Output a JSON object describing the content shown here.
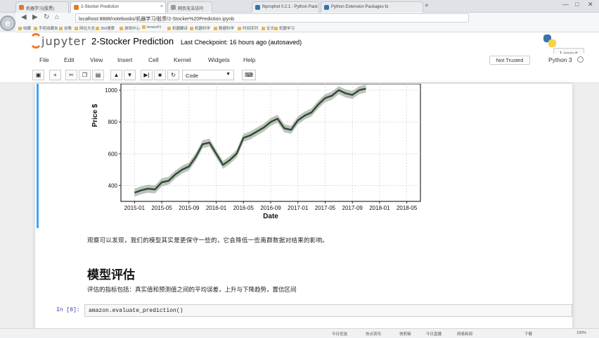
{
  "browser": {
    "tabs": [
      {
        "label": "机器学习(股票)"
      },
      {
        "label": "2-Stocker Prediction"
      },
      {
        "label": "网页无法访问"
      },
      {
        "label": "fbprophet 0.2.1 : Python Pack"
      },
      {
        "label": "Python Extension Packages fo"
      }
    ],
    "new_tab": "+",
    "window_controls": [
      "—",
      "□",
      "✕"
    ],
    "logo_letter": "e",
    "address": "localhost:8888/notebooks/机器学习/股票/2-Stocker%20Prediction.ipynb",
    "bookmarks": [
      "收藏",
      "手机收藏夹",
      "谷歌",
      "网址大全",
      "360搜索",
      "游戏中心",
      "tensorFl",
      "机器翻译",
      "机器科学",
      "数据科学",
      "时间序列",
      "论文",
      "机器学习"
    ]
  },
  "header": {
    "logo_text": "jupyter",
    "notebook_title": "2-Stocker Prediction",
    "checkpoint": "Last Checkpoint: 16 hours ago (autosaved)",
    "logout": "Logout"
  },
  "menu": {
    "items": [
      "File",
      "Edit",
      "View",
      "Insert",
      "Cell",
      "Kernel",
      "Widgets",
      "Help"
    ],
    "trust": "Not Trusted",
    "kernel": "Python 3"
  },
  "toolbar": {
    "buttons": [
      "save",
      "add",
      "cut",
      "copy",
      "paste",
      "move-up",
      "move-down",
      "run",
      "stop",
      "restart"
    ],
    "cell_type": "Code"
  },
  "chart_data": {
    "type": "line",
    "xlabel": "Date",
    "ylabel": "Price $",
    "x_tick_labels": [
      "2015-01",
      "2015-05",
      "2015-09",
      "2016-01",
      "2016-05",
      "2016-09",
      "2017-01",
      "2017-05",
      "2017-09",
      "2018-01",
      "2018-05"
    ],
    "y_tick_labels": [
      "400",
      "600",
      "800",
      "1000"
    ],
    "xlim": [
      "2014-11",
      "2018-07"
    ],
    "ylim": [
      300,
      1040
    ],
    "series": [
      {
        "color": "#2f4a2f",
        "band_color": "#9aa39a",
        "x": [
          "2015-01",
          "2015-02",
          "2015-03",
          "2015-04",
          "2015-05",
          "2015-06",
          "2015-07",
          "2015-08",
          "2015-09",
          "2015-10",
          "2015-11",
          "2015-12",
          "2016-01",
          "2016-02",
          "2016-03",
          "2016-04",
          "2016-05",
          "2016-06",
          "2016-07",
          "2016-08",
          "2016-09",
          "2016-10",
          "2016-11",
          "2016-12",
          "2017-01",
          "2017-02",
          "2017-03",
          "2017-04",
          "2017-05",
          "2017-06",
          "2017-07",
          "2017-08",
          "2017-09",
          "2017-10",
          "2017-11"
        ],
        "values": [
          355,
          370,
          380,
          375,
          420,
          430,
          470,
          500,
          520,
          580,
          660,
          670,
          600,
          530,
          560,
          600,
          700,
          715,
          740,
          765,
          800,
          820,
          760,
          750,
          810,
          840,
          860,
          910,
          950,
          965,
          1000,
          980,
          970,
          1000,
          1010
        ]
      }
    ]
  },
  "text": {
    "p1": "观察可以发现，我们的模型其实是更保守一些的，它会降低一些离群数据对结果的影响。",
    "h2": "模型评估",
    "p2": "评估的指标包括：真实值和预测值之间的平均误差，上升与下降趋势，置信区间",
    "in_prompt": "In [8]:",
    "code": "amazon.evaluate_prediction()"
  },
  "statusbar": {
    "items": [
      "今日优选",
      "热点资讯",
      "快剪辑",
      "今日直播",
      "网易新闻",
      "下载",
      "100%"
    ]
  }
}
